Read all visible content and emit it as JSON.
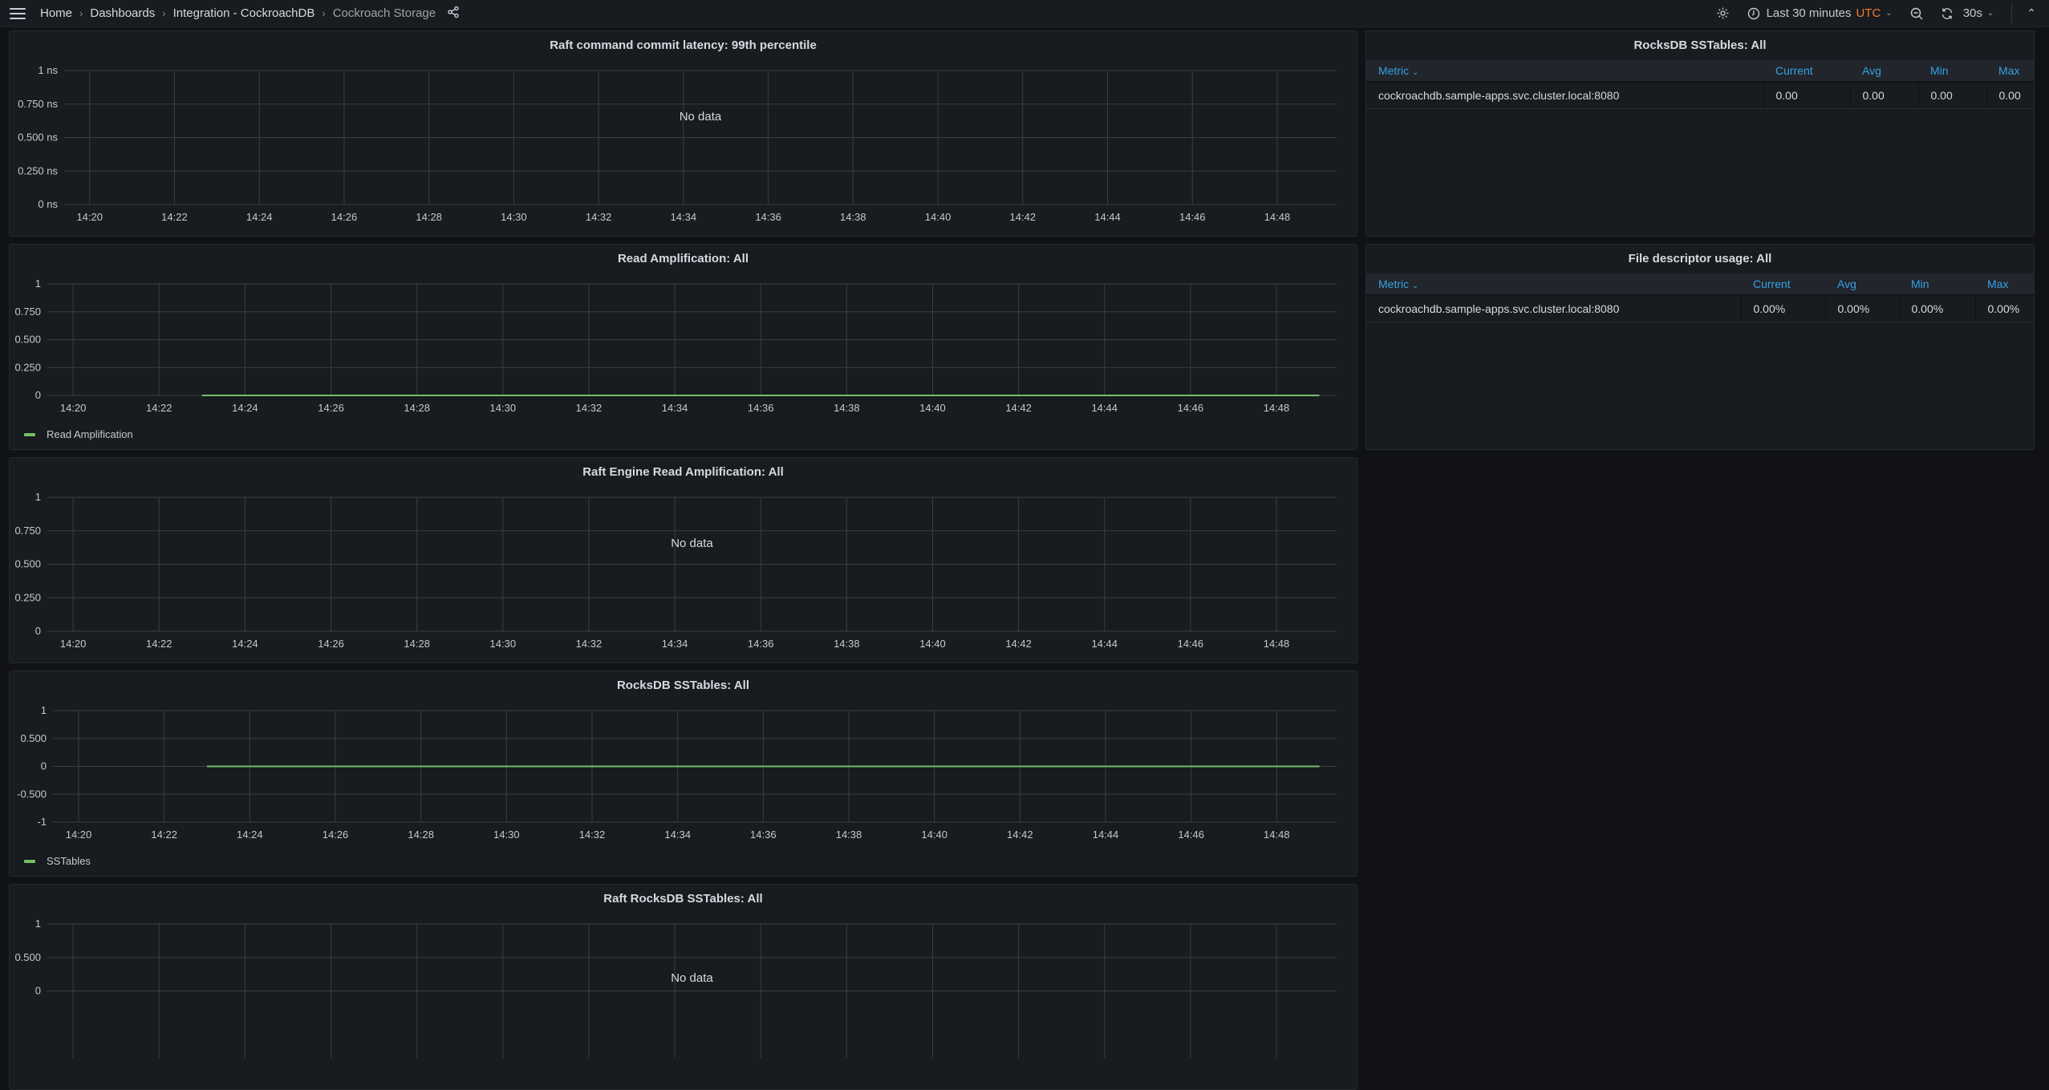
{
  "topbar": {
    "breadcrumbs": [
      "Home",
      "Dashboards",
      "Integration - CockroachDB",
      "Cockroach Storage"
    ],
    "time_range": "Last 30 minutes",
    "timezone": "UTC",
    "refresh_interval": "30s",
    "icons": [
      "menu-icon",
      "share-icon",
      "gear-icon",
      "clock-icon",
      "zoom-out-icon",
      "refresh-icon",
      "chevron-up-icon"
    ]
  },
  "colors": {
    "background": "#111217",
    "panel": "#181b1f",
    "series": "#73bf69",
    "table_header": "#33a2e5",
    "utc": "#f4792b"
  },
  "tables": [
    {
      "title": "RocksDB SSTables: All",
      "columns": [
        "Metric",
        "Current",
        "Avg",
        "Min",
        "Max"
      ],
      "sort_column": "Metric",
      "rows": [
        [
          "cockroachdb.sample-apps.svc.cluster.local:8080",
          "0.00",
          "0.00",
          "0.00",
          "0.00"
        ]
      ]
    },
    {
      "title": "File descriptor usage: All",
      "columns": [
        "Metric",
        "Current",
        "Avg",
        "Min",
        "Max"
      ],
      "sort_column": "Metric",
      "rows": [
        [
          "cockroachdb.sample-apps.svc.cluster.local:8080",
          "0.00%",
          "0.00%",
          "0.00%",
          "0.00%"
        ]
      ]
    }
  ],
  "chart_data": [
    {
      "type": "line",
      "title": "Raft command commit latency: 99th percentile",
      "no_data": "No data",
      "y_ticks": [
        "0 ns",
        "0.250 ns",
        "0.500 ns",
        "0.750 ns",
        "1 ns"
      ],
      "y_tick_values": [
        0,
        0.25,
        0.5,
        0.75,
        1
      ],
      "ylim": [
        0,
        1
      ],
      "xlim": [
        "14:19:24",
        "14:49:24"
      ],
      "x_ticks": [
        "14:20",
        "14:22",
        "14:24",
        "14:26",
        "14:28",
        "14:30",
        "14:32",
        "14:34",
        "14:36",
        "14:38",
        "14:40",
        "14:42",
        "14:44",
        "14:46",
        "14:48"
      ],
      "grid": true,
      "series": []
    },
    {
      "type": "line",
      "title": "Read Amplification: All",
      "y_ticks": [
        "0",
        "0.250",
        "0.500",
        "0.750",
        "1"
      ],
      "y_tick_values": [
        0,
        0.25,
        0.5,
        0.75,
        1
      ],
      "ylim": [
        0,
        1
      ],
      "xlim": [
        "14:19:24",
        "14:49:24"
      ],
      "x_ticks": [
        "14:20",
        "14:22",
        "14:24",
        "14:26",
        "14:28",
        "14:30",
        "14:32",
        "14:34",
        "14:36",
        "14:38",
        "14:40",
        "14:42",
        "14:44",
        "14:46",
        "14:48"
      ],
      "grid": true,
      "legend": "bottom-left",
      "series": [
        {
          "name": "Read Amplification",
          "x": [
            "14:23",
            "14:49"
          ],
          "y": [
            0,
            0
          ]
        }
      ]
    },
    {
      "type": "line",
      "title": "Raft Engine Read Amplification: All",
      "no_data": "No data",
      "y_ticks": [
        "0",
        "0.250",
        "0.500",
        "0.750",
        "1"
      ],
      "y_tick_values": [
        0,
        0.25,
        0.5,
        0.75,
        1
      ],
      "ylim": [
        0,
        1
      ],
      "xlim": [
        "14:19:24",
        "14:49:24"
      ],
      "x_ticks": [
        "14:20",
        "14:22",
        "14:24",
        "14:26",
        "14:28",
        "14:30",
        "14:32",
        "14:34",
        "14:36",
        "14:38",
        "14:40",
        "14:42",
        "14:44",
        "14:46",
        "14:48"
      ],
      "grid": true,
      "series": []
    },
    {
      "type": "line",
      "title": "RocksDB SSTables: All",
      "y_ticks": [
        "-1",
        "-0.500",
        "0",
        "0.500",
        "1"
      ],
      "y_tick_values": [
        -1,
        -0.5,
        0,
        0.5,
        1
      ],
      "ylim": [
        -1,
        1
      ],
      "xlim": [
        "14:19:24",
        "14:49:24"
      ],
      "x_ticks": [
        "14:20",
        "14:22",
        "14:24",
        "14:26",
        "14:28",
        "14:30",
        "14:32",
        "14:34",
        "14:36",
        "14:38",
        "14:40",
        "14:42",
        "14:44",
        "14:46",
        "14:48"
      ],
      "grid": true,
      "legend": "bottom-left",
      "series": [
        {
          "name": "SSTables",
          "x": [
            "14:23",
            "14:49"
          ],
          "y": [
            0,
            0
          ]
        }
      ]
    },
    {
      "type": "line",
      "title": "Raft RocksDB SSTables: All",
      "no_data": "No data",
      "y_ticks": [
        "0",
        "0.500",
        "1"
      ],
      "y_tick_values": [
        0,
        0.5,
        1
      ],
      "ylim": [
        -1,
        1
      ],
      "xlim": [
        "14:19:24",
        "14:49:24"
      ],
      "grid": true,
      "series": []
    }
  ]
}
